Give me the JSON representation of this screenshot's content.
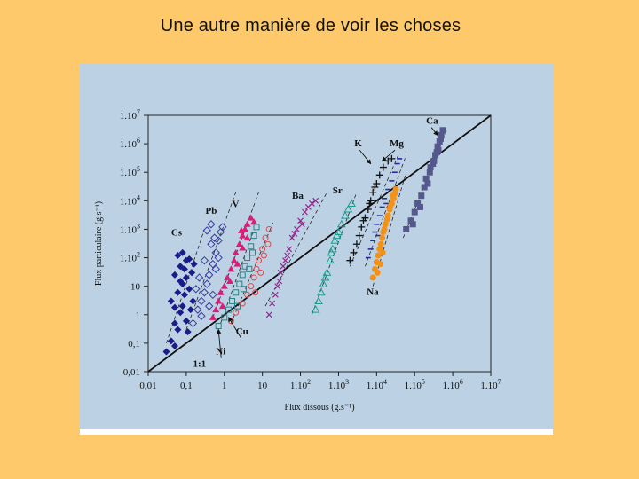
{
  "slide": {
    "title": "Une autre manière de voir les choses"
  },
  "chart_data": {
    "type": "scatter",
    "xlabel": "Flux dissous (g.s⁻¹)",
    "ylabel": "Flux particulaire (g.s⁻¹)",
    "xscale": "log",
    "yscale": "log",
    "xlim": [
      0.01,
      10000000
    ],
    "ylim": [
      0.01,
      10000000
    ],
    "x_ticks": [
      {
        "value": 0.01,
        "base": "0,01",
        "exp": ""
      },
      {
        "value": 0.1,
        "base": "0,1",
        "exp": ""
      },
      {
        "value": 1,
        "base": "1",
        "exp": ""
      },
      {
        "value": 10,
        "base": "10",
        "exp": ""
      },
      {
        "value": 100,
        "base": "1.10",
        "exp": "2"
      },
      {
        "value": 1000,
        "base": "1.10",
        "exp": "3"
      },
      {
        "value": 10000,
        "base": "1.10",
        "exp": "4"
      },
      {
        "value": 100000,
        "base": "1.10",
        "exp": "5"
      },
      {
        "value": 1000000,
        "base": "1.10",
        "exp": "6"
      },
      {
        "value": 10000000,
        "base": "1.10",
        "exp": "7"
      }
    ],
    "y_ticks": [
      {
        "value": 0.01,
        "base": "0,01",
        "exp": ""
      },
      {
        "value": 0.1,
        "base": "0,1",
        "exp": ""
      },
      {
        "value": 1,
        "base": "1",
        "exp": ""
      },
      {
        "value": 10,
        "base": "10",
        "exp": ""
      },
      {
        "value": 100,
        "base": "1.10",
        "exp": "2"
      },
      {
        "value": 1000,
        "base": "1.10",
        "exp": "3"
      },
      {
        "value": 10000,
        "base": "1.10",
        "exp": "4"
      },
      {
        "value": 100000,
        "base": "1.10",
        "exp": "5"
      },
      {
        "value": 1000000,
        "base": "1.10",
        "exp": "6"
      },
      {
        "value": 10000000,
        "base": "1.10",
        "exp": "7"
      }
    ],
    "reference_line": {
      "label": "1:1",
      "from": [
        0.01,
        0.01
      ],
      "to": [
        10000000,
        10000000
      ]
    },
    "series": [
      {
        "name": "Cs",
        "color": "#1B1B8A",
        "marker": "diamond-filled",
        "label_at": [
          0.04,
          600
        ],
        "fit": [
          [
            0.03,
            0.1
          ],
          [
            0.3,
            1000
          ]
        ],
        "points": [
          [
            0.03,
            0.05
          ],
          [
            0.04,
            0.12
          ],
          [
            0.05,
            0.08
          ],
          [
            0.06,
            0.3
          ],
          [
            0.05,
            0.5
          ],
          [
            0.07,
            1.2
          ],
          [
            0.04,
            3
          ],
          [
            0.06,
            6
          ],
          [
            0.08,
            12
          ],
          [
            0.05,
            25
          ],
          [
            0.07,
            50
          ],
          [
            0.09,
            40
          ],
          [
            0.1,
            80
          ],
          [
            0.08,
            150
          ],
          [
            0.12,
            90
          ],
          [
            0.06,
            120
          ],
          [
            0.1,
            20
          ],
          [
            0.12,
            8
          ],
          [
            0.08,
            2
          ],
          [
            0.1,
            0.6
          ],
          [
            0.13,
            1.5
          ],
          [
            0.15,
            3
          ],
          [
            0.14,
            30
          ],
          [
            0.16,
            60
          ],
          [
            0.07,
            15
          ],
          [
            0.09,
            5
          ],
          [
            0.11,
            0.25
          ],
          [
            0.05,
            1.8
          ]
        ]
      },
      {
        "name": "Pb",
        "color": "#3B3BA0",
        "marker": "diamond-open",
        "label_at": [
          0.32,
          3500
        ],
        "fit": [
          [
            0.1,
            0.3
          ],
          [
            2,
            20000
          ]
        ],
        "points": [
          [
            0.15,
            0.5
          ],
          [
            0.2,
            1.5
          ],
          [
            0.25,
            3
          ],
          [
            0.3,
            6
          ],
          [
            0.35,
            12
          ],
          [
            0.4,
            25
          ],
          [
            0.5,
            60
          ],
          [
            0.6,
            150
          ],
          [
            0.7,
            400
          ],
          [
            0.8,
            800
          ],
          [
            0.9,
            1200
          ],
          [
            0.45,
            300
          ],
          [
            0.55,
            500
          ],
          [
            0.3,
            80
          ],
          [
            0.22,
            20
          ],
          [
            0.18,
            8
          ],
          [
            0.6,
            40
          ],
          [
            0.5,
            5
          ],
          [
            0.4,
            2
          ],
          [
            0.7,
            100
          ],
          [
            0.35,
            900
          ],
          [
            0.45,
            1500
          ],
          [
            0.25,
            0.9
          ]
        ]
      },
      {
        "name": "V",
        "color": "#D81E7A",
        "marker": "triangle-filled",
        "label_at": [
          1.6,
          6000
        ],
        "fit": [
          [
            0.5,
            0.8
          ],
          [
            8,
            20000
          ]
        ],
        "points": [
          [
            0.5,
            0.8
          ],
          [
            0.6,
            1.5
          ],
          [
            0.7,
            3
          ],
          [
            0.8,
            6
          ],
          [
            1,
            10
          ],
          [
            1.2,
            20
          ],
          [
            1.5,
            40
          ],
          [
            1.8,
            80
          ],
          [
            2,
            150
          ],
          [
            2.5,
            300
          ],
          [
            3,
            600
          ],
          [
            3.5,
            1000
          ],
          [
            4,
            1500
          ],
          [
            5,
            2500
          ],
          [
            2.2,
            60
          ],
          [
            1.4,
            15
          ],
          [
            0.9,
            2
          ],
          [
            4,
            500
          ],
          [
            3,
            220
          ],
          [
            6,
            1800
          ],
          [
            2.8,
            900
          ]
        ]
      },
      {
        "name": "Ni",
        "color": "#2E7F80",
        "marker": "square-open",
        "label_at": [
          0.6,
          0.04
        ],
        "fit": [
          [
            0.8,
            0.5
          ],
          [
            6,
            1000
          ]
        ],
        "points": [
          [
            0.7,
            0.4
          ],
          [
            1,
            0.8
          ],
          [
            1.3,
            1.5
          ],
          [
            1.6,
            3
          ],
          [
            2,
            6
          ],
          [
            2.5,
            12
          ],
          [
            3,
            25
          ],
          [
            3.5,
            50
          ],
          [
            4,
            100
          ],
          [
            5,
            250
          ],
          [
            6,
            600
          ],
          [
            7,
            1200
          ],
          [
            3.2,
            8
          ],
          [
            2.2,
            2
          ],
          [
            4.5,
            40
          ],
          [
            5.5,
            150
          ]
        ]
      },
      {
        "name": "Cu",
        "color": "#D9494F",
        "marker": "circle-open",
        "label_at": [
          2,
          0.2
        ],
        "fit": [
          [
            1.5,
            0.5
          ],
          [
            20,
            2000
          ]
        ],
        "points": [
          [
            1.5,
            0.6
          ],
          [
            2,
            1.2
          ],
          [
            3,
            2.5
          ],
          [
            4,
            5
          ],
          [
            5,
            10
          ],
          [
            6,
            20
          ],
          [
            7,
            40
          ],
          [
            8,
            80
          ],
          [
            10,
            200
          ],
          [
            12,
            500
          ],
          [
            15,
            1000
          ],
          [
            9,
            30
          ],
          [
            6.5,
            6
          ],
          [
            11,
            120
          ],
          [
            14,
            300
          ]
        ]
      },
      {
        "name": "Ba",
        "color": "#8E2A8A",
        "marker": "x",
        "label_at": [
          60,
          12000
        ],
        "fit": [
          [
            12,
            2
          ],
          [
            500,
            20000
          ]
        ],
        "points": [
          [
            15,
            1
          ],
          [
            18,
            2.5
          ],
          [
            22,
            5
          ],
          [
            25,
            10
          ],
          [
            30,
            30
          ],
          [
            40,
            80
          ],
          [
            50,
            200
          ],
          [
            60,
            500
          ],
          [
            80,
            1000
          ],
          [
            100,
            2000
          ],
          [
            130,
            4000
          ],
          [
            160,
            6000
          ],
          [
            200,
            8000
          ],
          [
            250,
            10000
          ],
          [
            45,
            120
          ],
          [
            70,
            700
          ],
          [
            110,
            1500
          ],
          [
            35,
            50
          ],
          [
            28,
            15
          ]
        ]
      },
      {
        "name": "Sr",
        "color": "#1E9C92",
        "marker": "triangle-open",
        "label_at": [
          700,
          18000
        ],
        "fit": [
          [
            200,
            1
          ],
          [
            3000,
            20000
          ]
        ],
        "points": [
          [
            250,
            1.5
          ],
          [
            300,
            3
          ],
          [
            350,
            6
          ],
          [
            400,
            12
          ],
          [
            500,
            30
          ],
          [
            600,
            80
          ],
          [
            700,
            200
          ],
          [
            800,
            400
          ],
          [
            1000,
            800
          ],
          [
            1200,
            1500
          ],
          [
            1500,
            3000
          ],
          [
            1800,
            5000
          ],
          [
            2200,
            8000
          ],
          [
            900,
            600
          ],
          [
            650,
            150
          ],
          [
            450,
            20
          ]
        ]
      },
      {
        "name": "K",
        "color": "#111111",
        "marker": "plus",
        "label_at": [
          2600,
          800000
        ],
        "fit": [
          [
            2000,
            50
          ],
          [
            40000,
            500000
          ]
        ],
        "points": [
          [
            2000,
            80
          ],
          [
            2500,
            150
          ],
          [
            3000,
            300
          ],
          [
            3500,
            600
          ],
          [
            4000,
            1200
          ],
          [
            5000,
            2500
          ],
          [
            6000,
            5000
          ],
          [
            7000,
            10000
          ],
          [
            8000,
            20000
          ],
          [
            10000,
            40000
          ],
          [
            12000,
            80000
          ],
          [
            15000,
            150000
          ],
          [
            20000,
            250000
          ],
          [
            25000,
            300000
          ],
          [
            9000,
            30000
          ],
          [
            6500,
            8000
          ],
          [
            4500,
            2000
          ]
        ]
      },
      {
        "name": "Mg",
        "color": "#2A2A9A",
        "marker": "dash",
        "label_at": [
          22000,
          800000
        ],
        "fit": [
          [
            5000,
            50
          ],
          [
            60000,
            400000
          ]
        ],
        "points": [
          [
            6000,
            100
          ],
          [
            7000,
            200
          ],
          [
            8000,
            400
          ],
          [
            9000,
            800
          ],
          [
            10000,
            1500
          ],
          [
            12000,
            3000
          ],
          [
            14000,
            6000
          ],
          [
            16000,
            12000
          ],
          [
            20000,
            25000
          ],
          [
            25000,
            50000
          ],
          [
            30000,
            100000
          ],
          [
            35000,
            200000
          ],
          [
            40000,
            300000
          ],
          [
            18000,
            8000
          ],
          [
            11000,
            600
          ]
        ]
      },
      {
        "name": "Na",
        "color": "#F39218",
        "marker": "circle-filled",
        "label_at": [
          5500,
          5
        ],
        "fit": [
          [
            8000,
            10
          ],
          [
            60000,
            100000
          ]
        ],
        "points": [
          [
            8000,
            20
          ],
          [
            9000,
            40
          ],
          [
            10000,
            70
          ],
          [
            11000,
            120
          ],
          [
            12000,
            200
          ],
          [
            13000,
            300
          ],
          [
            14000,
            500
          ],
          [
            15000,
            800
          ],
          [
            17000,
            1500
          ],
          [
            20000,
            3000
          ],
          [
            22000,
            5000
          ],
          [
            25000,
            8000
          ],
          [
            28000,
            12000
          ],
          [
            30000,
            18000
          ],
          [
            32000,
            25000
          ],
          [
            12500,
            60
          ],
          [
            16000,
            1000
          ],
          [
            19000,
            2200
          ],
          [
            23000,
            6500
          ],
          [
            27000,
            15000
          ],
          [
            10500,
            30
          ],
          [
            14500,
            150
          ]
        ]
      },
      {
        "name": "Ca",
        "color": "#55588C",
        "marker": "square-filled",
        "label_at": [
          200000,
          5000000
        ],
        "fit": [
          [
            50000,
            500
          ],
          [
            700000,
            3000000
          ]
        ],
        "points": [
          [
            60000,
            1000
          ],
          [
            80000,
            2000
          ],
          [
            100000,
            4000
          ],
          [
            120000,
            8000
          ],
          [
            150000,
            15000
          ],
          [
            180000,
            30000
          ],
          [
            200000,
            60000
          ],
          [
            250000,
            100000
          ],
          [
            300000,
            200000
          ],
          [
            350000,
            400000
          ],
          [
            400000,
            800000
          ],
          [
            450000,
            1200000
          ],
          [
            500000,
            2000000
          ],
          [
            550000,
            3000000
          ],
          [
            220000,
            40000
          ],
          [
            320000,
            250000
          ],
          [
            420000,
            600000
          ],
          [
            140000,
            6000
          ],
          [
            90000,
            1500
          ],
          [
            480000,
            1500000
          ],
          [
            380000,
            500000
          ],
          [
            260000,
            150000
          ]
        ]
      }
    ],
    "annotations": [
      {
        "label": "Cu",
        "text_at": [
          2,
          0.2
        ],
        "arrow_to": [
          1.3,
          0.8
        ]
      },
      {
        "label": "Ni",
        "text_at": [
          0.6,
          0.04
        ],
        "arrow_to": [
          0.7,
          0.3
        ]
      },
      {
        "label": "K",
        "text_at": [
          2600,
          800000
        ],
        "arrow_to": [
          7000,
          200000
        ]
      },
      {
        "label": "Mg",
        "text_at": [
          22000,
          800000
        ],
        "arrow_to": [
          14000,
          250000
        ]
      },
      {
        "label": "Ca",
        "text_at": [
          200000,
          5000000
        ],
        "arrow_to": [
          400000,
          2000000
        ]
      }
    ]
  }
}
